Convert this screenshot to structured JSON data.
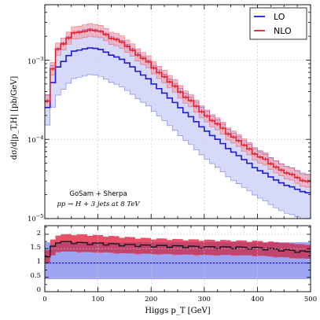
{
  "colors": {
    "lo": "#1c1cd6",
    "nlo": "#e0202a",
    "lo_band": "#c9ccf6",
    "nlo_band": "#f2a6b8",
    "ratio_lo_band": "#9da4f2",
    "ratio_nlo_band": "#e8506a",
    "ratio_overlap": "#c2436e",
    "ratio_line": "#111111"
  },
  "chart_data": [
    {
      "type": "line",
      "panel": "main",
      "ylabel": "dσ/d|p_T,H| [pb/GeV]",
      "xlim": [
        0,
        500
      ],
      "ylim": [
        1e-05,
        0.005
      ],
      "yscale": "log",
      "y_ticks": [
        {
          "value": 0.001,
          "base": "10",
          "exp": "−3"
        },
        {
          "value": 0.0001,
          "base": "10",
          "exp": "−4"
        },
        {
          "value": 1e-05,
          "base": "10",
          "exp": "−5"
        }
      ],
      "grid": true,
      "legend_position": "top-right",
      "legend": [
        "LO",
        "NLO"
      ],
      "annotation": {
        "line1": "GoSam + Sherpa",
        "line2_process": "pp → H + 3 jets at 8 TeV"
      },
      "shape": {
        "peak_x": 80,
        "rise_x": [
          0,
          10,
          20,
          30,
          40,
          50,
          60,
          70,
          80
        ],
        "rise_y": [
          0.00025,
          0.00075,
          0.0011,
          0.00135,
          0.0015,
          0.00155,
          0.0016,
          0.00162,
          0.0016
        ]
      },
      "series": [
        {
          "name": "LO",
          "x": [
            5,
            20,
            50,
            80,
            100,
            150,
            200,
            250,
            300,
            350,
            400,
            450,
            495
          ],
          "y": [
            0.00025,
            0.00075,
            0.00125,
            0.00143,
            0.0014,
            0.00098,
            0.00054,
            0.00027,
            0.000135,
            7.3e-05,
            4.2e-05,
            2.7e-05,
            2.1e-05
          ]
        },
        {
          "name": "LO band low",
          "x": [
            5,
            20,
            50,
            80,
            100,
            150,
            200,
            250,
            300,
            350,
            400,
            450,
            495
          ],
          "y": [
            0.00015,
            0.00033,
            0.00056,
            0.00066,
            0.00064,
            0.00044,
            0.000245,
            0.00012,
            6e-05,
            3.2e-05,
            1.9e-05,
            1.2e-05,
            9.5e-06
          ]
        },
        {
          "name": "LO band high",
          "x": [
            5,
            20,
            50,
            80,
            100,
            150,
            200,
            250,
            300,
            350,
            400,
            450,
            495
          ],
          "y": [
            0.00036,
            0.0013,
            0.00215,
            0.0025,
            0.0024,
            0.00168,
            0.00093,
            0.00047,
            0.00024,
            0.000127,
            7.3e-05,
            4.7e-05,
            3.6e-05
          ]
        },
        {
          "name": "NLO",
          "x": [
            5,
            20,
            50,
            80,
            100,
            150,
            200,
            250,
            300,
            350,
            400,
            450,
            495
          ],
          "y": [
            0.0003,
            0.00125,
            0.0021,
            0.0024,
            0.00235,
            0.0016,
            0.00087,
            0.00043,
            0.00021,
            0.000113,
            6.3e-05,
            3.9e-05,
            2.9e-05
          ]
        },
        {
          "name": "NLO band low",
          "x": [
            5,
            20,
            50,
            80,
            100,
            150,
            200,
            250,
            300,
            350,
            400,
            450,
            495
          ],
          "y": [
            0.00025,
            0.00105,
            0.00175,
            0.002,
            0.00196,
            0.00134,
            0.00073,
            0.00036,
            0.000176,
            9.5e-05,
            5.3e-05,
            3.3e-05,
            2.45e-05
          ]
        },
        {
          "name": "NLO band high",
          "x": [
            5,
            20,
            50,
            80,
            100,
            150,
            200,
            250,
            300,
            350,
            400,
            450,
            495
          ],
          "y": [
            0.00036,
            0.0015,
            0.0025,
            0.0029,
            0.0028,
            0.00192,
            0.00104,
            0.00052,
            0.00025,
            0.000135,
            7.6e-05,
            4.7e-05,
            3.5e-05
          ]
        }
      ]
    },
    {
      "type": "line",
      "panel": "ratio",
      "xlabel": "Higgs p_T [GeV]",
      "xlim": [
        0,
        500
      ],
      "ylim": [
        0,
        2.3
      ],
      "x_ticks": [
        0,
        100,
        200,
        300,
        400,
        500
      ],
      "y_ticks": [
        0.0,
        0.5,
        1.0,
        1.5,
        2.0
      ],
      "grid": true,
      "series": [
        {
          "name": "LO band low",
          "x": [
            0,
            500
          ],
          "y": [
            0.44,
            0.44
          ]
        },
        {
          "name": "LO band high",
          "x": [
            0,
            500
          ],
          "y": [
            1.72,
            1.72
          ]
        },
        {
          "name": "LO",
          "x": [
            0,
            500
          ],
          "y": [
            1.0,
            1.0
          ]
        },
        {
          "name": "NLO",
          "x": [
            5,
            20,
            50,
            80,
            100,
            150,
            200,
            250,
            300,
            350,
            400,
            450,
            495
          ],
          "y": [
            1.2,
            1.74,
            1.72,
            1.68,
            1.68,
            1.63,
            1.6,
            1.58,
            1.55,
            1.54,
            1.52,
            1.45,
            1.38
          ]
        },
        {
          "name": "NLO band low",
          "x": [
            5,
            20,
            50,
            80,
            100,
            150,
            200,
            250,
            300,
            350,
            400,
            450,
            495
          ],
          "y": [
            1.0,
            1.4,
            1.4,
            1.38,
            1.38,
            1.34,
            1.32,
            1.3,
            1.28,
            1.28,
            1.26,
            1.2,
            1.15
          ]
        },
        {
          "name": "NLO band high",
          "x": [
            5,
            20,
            50,
            80,
            100,
            150,
            200,
            250,
            300,
            350,
            400,
            450,
            495
          ],
          "y": [
            1.44,
            1.98,
            2.0,
            1.98,
            1.96,
            1.9,
            1.85,
            1.82,
            1.8,
            1.78,
            1.76,
            1.7,
            1.62
          ]
        }
      ]
    }
  ]
}
